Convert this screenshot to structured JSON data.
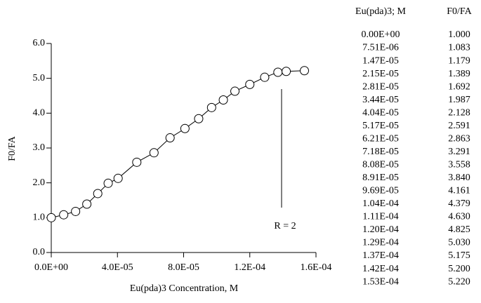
{
  "chart_data": {
    "type": "line",
    "xlabel": "Eu(pda)3 Concentration, M",
    "ylabel": "F0/FA",
    "annotation": "R = 2",
    "color": "#000000",
    "x": [
      0,
      7.51e-06,
      1.47e-05,
      2.15e-05,
      2.81e-05,
      3.44e-05,
      4.04e-05,
      5.17e-05,
      6.21e-05,
      7.18e-05,
      8.08e-05,
      8.91e-05,
      9.69e-05,
      0.000104,
      0.000111,
      0.00012,
      0.000129,
      0.000137,
      0.000142,
      0.000153
    ],
    "values": [
      1.0,
      1.083,
      1.179,
      1.389,
      1.692,
      1.987,
      2.128,
      2.591,
      2.863,
      3.291,
      3.558,
      3.84,
      4.161,
      4.379,
      4.63,
      4.825,
      5.03,
      5.175,
      5.2,
      5.22
    ],
    "xlim": [
      0,
      0.00016
    ],
    "xticks": [
      {
        "value": 0,
        "label": "0.0E+00"
      },
      {
        "value": 4e-05,
        "label": "4.0E-05"
      },
      {
        "value": 8e-05,
        "label": "8.0E-05"
      },
      {
        "value": 0.00012,
        "label": "1.2E-04"
      },
      {
        "value": 0.00016,
        "label": "1.6E-04"
      }
    ],
    "ylim": [
      0,
      6
    ],
    "yticks": [
      {
        "value": 0,
        "label": "0.0"
      },
      {
        "value": 1,
        "label": "1.0"
      },
      {
        "value": 2,
        "label": "2.0"
      },
      {
        "value": 3,
        "label": "3.0"
      },
      {
        "value": 4,
        "label": "4.0"
      },
      {
        "value": 5,
        "label": "5.0"
      },
      {
        "value": 6,
        "label": "6.0"
      }
    ]
  },
  "table": {
    "header": [
      "Eu(pda)3; M",
      "F0/FA"
    ],
    "rows": [
      [
        "0.00E+00",
        "1.000"
      ],
      [
        "7.51E-06",
        "1.083"
      ],
      [
        "1.47E-05",
        "1.179"
      ],
      [
        "2.15E-05",
        "1.389"
      ],
      [
        "2.81E-05",
        "1.692"
      ],
      [
        "3.44E-05",
        "1.987"
      ],
      [
        "4.04E-05",
        "2.128"
      ],
      [
        "5.17E-05",
        "2.591"
      ],
      [
        "6.21E-05",
        "2.863"
      ],
      [
        "7.18E-05",
        "3.291"
      ],
      [
        "8.08E-05",
        "3.558"
      ],
      [
        "8.91E-05",
        "3.840"
      ],
      [
        "9.69E-05",
        "4.161"
      ],
      [
        "1.04E-04",
        "4.379"
      ],
      [
        "1.11E-04",
        "4.630"
      ],
      [
        "1.20E-04",
        "4.825"
      ],
      [
        "1.29E-04",
        "5.030"
      ],
      [
        "1.37E-04",
        "5.175"
      ],
      [
        "1.42E-04",
        "5.200"
      ],
      [
        "1.53E-04",
        "5.220"
      ]
    ]
  }
}
